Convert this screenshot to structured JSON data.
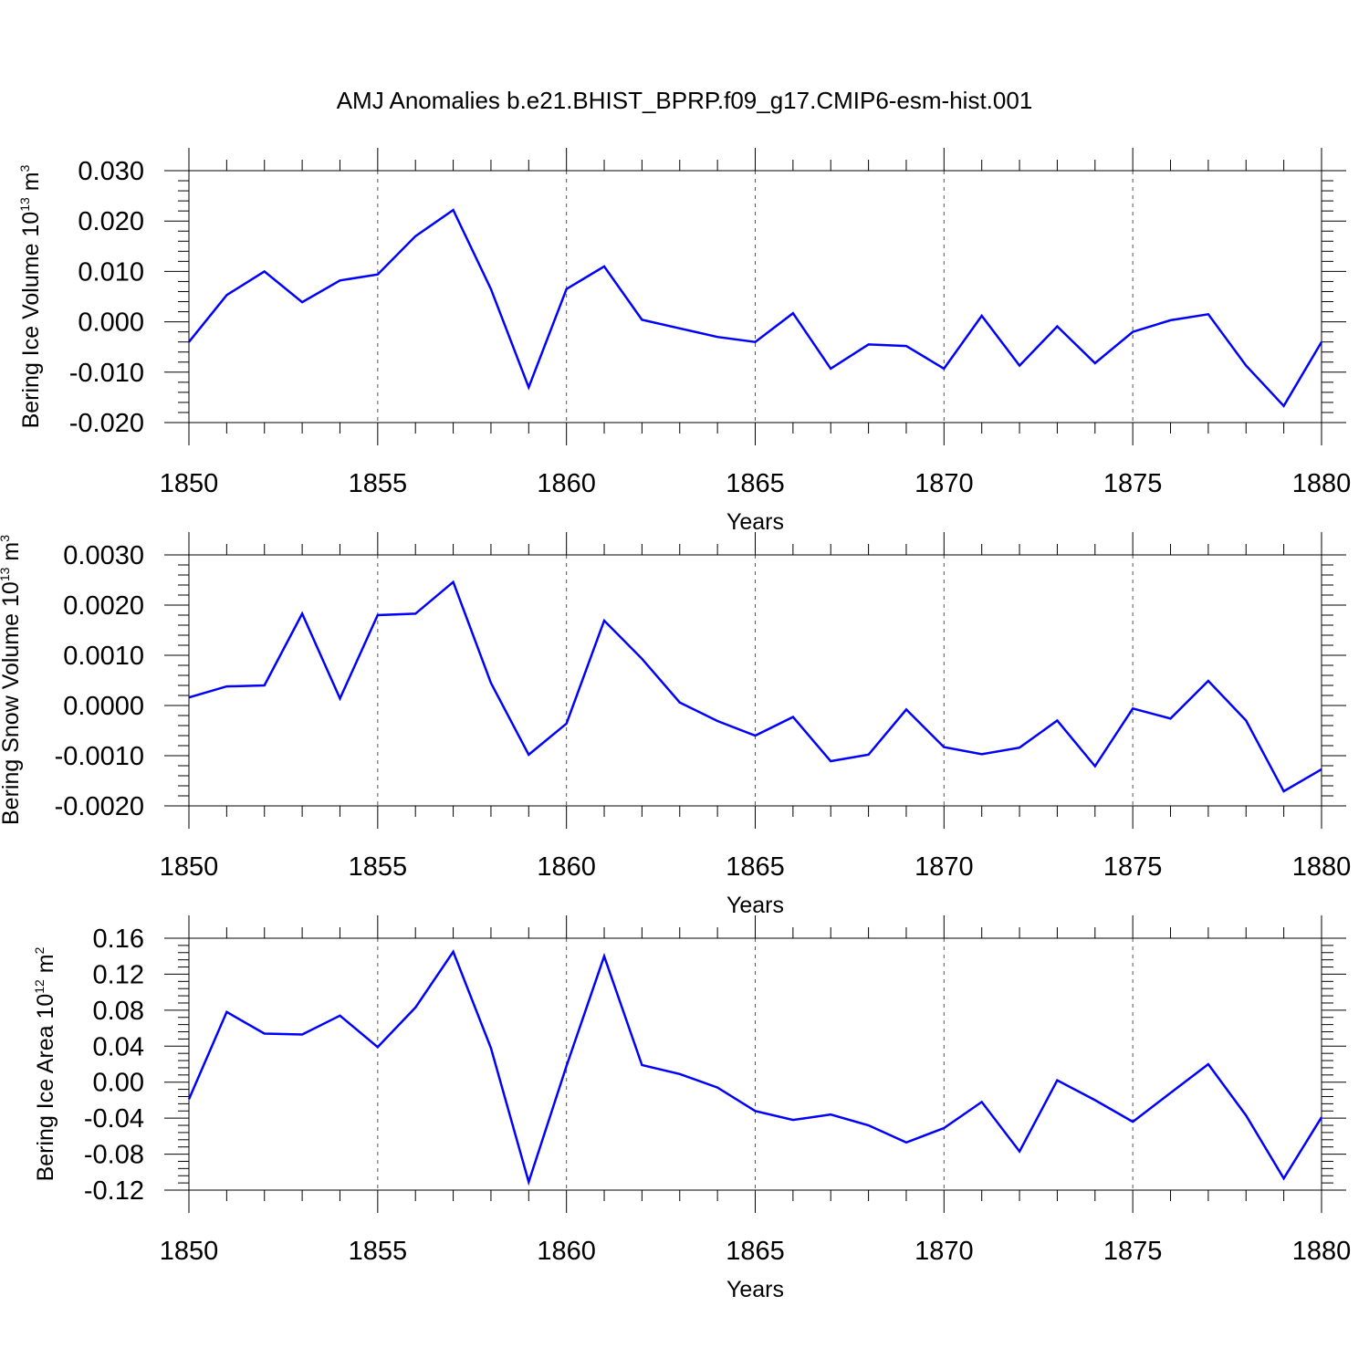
{
  "title": "AMJ Anomalies b.e21.BHIST_BPRP.f09_g17.CMIP6-esm-hist.001",
  "line_color": "#0000ff",
  "chart_data": [
    {
      "type": "line",
      "ylabel": "Bering Ice Volume 10",
      "ylabel_exp": "13",
      "ylabel_unit": " m",
      "ylabel_unit_exp": "3",
      "xlabel": "Years",
      "xlim": [
        1850,
        1880
      ],
      "ylim": [
        -0.02,
        0.03
      ],
      "xticks": [
        "1850",
        "1855",
        "1860",
        "1865",
        "1870",
        "1875",
        "1880"
      ],
      "yticks": [
        "-0.020",
        "-0.010",
        "0.000",
        "0.010",
        "0.020",
        "0.030"
      ],
      "series": [
        {
          "x": [
            1850,
            1851,
            1852,
            1853,
            1854,
            1855,
            1856,
            1857,
            1858,
            1859,
            1860,
            1861,
            1862,
            1863,
            1864,
            1865,
            1866,
            1867,
            1868,
            1869,
            1870,
            1871,
            1872,
            1873,
            1874,
            1875,
            1876,
            1877,
            1878,
            1879,
            1880
          ],
          "values": [
            -0.004,
            0.0053,
            0.01,
            0.0039,
            0.0082,
            0.0094,
            0.017,
            0.0222,
            0.0065,
            -0.013,
            0.0065,
            0.011,
            0.0004,
            -0.0013,
            -0.003,
            -0.004,
            0.0017,
            -0.0093,
            -0.0045,
            -0.0048,
            -0.0093,
            0.0012,
            -0.0087,
            -0.0009,
            -0.0082,
            -0.002,
            0.0003,
            0.0015,
            -0.0087,
            -0.0167,
            -0.004
          ]
        }
      ]
    },
    {
      "type": "line",
      "ylabel": "Bering Snow Volume 10",
      "ylabel_exp": "13",
      "ylabel_unit": " m",
      "ylabel_unit_exp": "3",
      "xlabel": "Years",
      "xlim": [
        1850,
        1880
      ],
      "ylim": [
        -0.002,
        0.003
      ],
      "xticks": [
        "1850",
        "1855",
        "1860",
        "1865",
        "1870",
        "1875",
        "1880"
      ],
      "yticks": [
        "-0.0020",
        "-0.0010",
        "0.0000",
        "0.0010",
        "0.0020",
        "0.0030"
      ],
      "series": [
        {
          "x": [
            1850,
            1851,
            1852,
            1853,
            1854,
            1855,
            1856,
            1857,
            1858,
            1859,
            1860,
            1861,
            1862,
            1863,
            1864,
            1865,
            1866,
            1867,
            1868,
            1869,
            1870,
            1871,
            1872,
            1873,
            1874,
            1875,
            1876,
            1877,
            1878,
            1879,
            1880
          ],
          "values": [
            0.00016,
            0.00038,
            0.0004,
            0.00183,
            0.00014,
            0.0018,
            0.00183,
            0.00246,
            0.00045,
            -0.00098,
            -0.00036,
            0.00169,
            0.00093,
            6e-05,
            -0.00031,
            -0.0006,
            -0.00023,
            -0.00111,
            -0.00098,
            -8e-05,
            -0.00083,
            -0.00097,
            -0.00084,
            -0.0003,
            -0.00121,
            -6e-05,
            -0.00026,
            0.00049,
            -0.0003,
            -0.00171,
            -0.00127
          ]
        }
      ]
    },
    {
      "type": "line",
      "ylabel": "Bering Ice Area 10",
      "ylabel_exp": "12",
      "ylabel_unit": " m",
      "ylabel_unit_exp": "2",
      "xlabel": "Years",
      "xlim": [
        1850,
        1880
      ],
      "ylim": [
        -0.12,
        0.16
      ],
      "xticks": [
        "1850",
        "1855",
        "1860",
        "1865",
        "1870",
        "1875",
        "1880"
      ],
      "yticks": [
        "-0.12",
        "-0.08",
        "-0.04",
        "0.00",
        "0.04",
        "0.08",
        "0.12",
        "0.16"
      ],
      "series": [
        {
          "x": [
            1850,
            1851,
            1852,
            1853,
            1854,
            1855,
            1856,
            1857,
            1858,
            1859,
            1860,
            1861,
            1862,
            1863,
            1864,
            1865,
            1866,
            1867,
            1868,
            1869,
            1870,
            1871,
            1872,
            1873,
            1874,
            1875,
            1876,
            1877,
            1878,
            1879,
            1880
          ],
          "values": [
            -0.019,
            0.078,
            0.054,
            0.053,
            0.074,
            0.039,
            0.083,
            0.145,
            0.038,
            -0.111,
            0.018,
            0.14,
            0.019,
            0.009,
            -0.006,
            -0.032,
            -0.042,
            -0.036,
            -0.048,
            -0.067,
            -0.051,
            -0.022,
            -0.077,
            0.002,
            -0.02,
            -0.044,
            -0.012,
            0.02,
            -0.037,
            -0.107,
            -0.039
          ]
        }
      ]
    }
  ]
}
